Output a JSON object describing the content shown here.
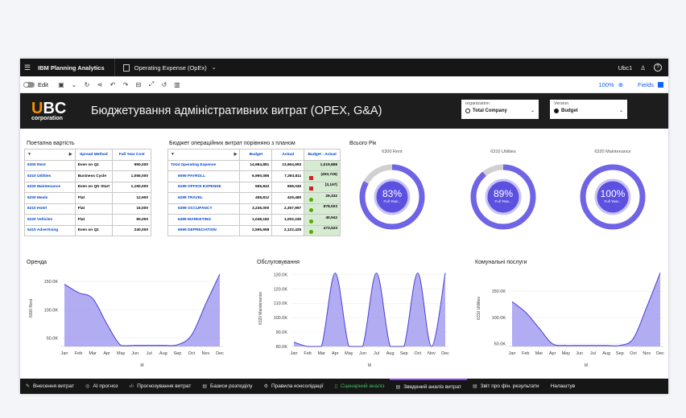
{
  "topbar": {
    "brand": "IBM Planning Analytics",
    "workbook": "Operating Expense (OpEx)",
    "user": "Ubc1",
    "help": "?"
  },
  "toolbar": {
    "edit": "Edit",
    "zoom": "100%",
    "fields": "Fields"
  },
  "banner": {
    "logo_big": "UBC",
    "logo_small": "corporation",
    "title": "Бюджетування адміністративних витрат (OPEX, G&A)",
    "org_label": "organization",
    "org_value": "Total Company",
    "version_label": "Version",
    "version_value": "Budget"
  },
  "table1": {
    "title": "Поетапна вартість",
    "headers": [
      "Spread Method",
      "Full Year Cost"
    ],
    "rows": [
      [
        "6300 Rent",
        "Even on Q1",
        "990,000"
      ],
      [
        "6310 Utilities",
        "Business Cycle",
        "1,056,000"
      ],
      [
        "6320 Maintenance",
        "Even on Qtr Start",
        "1,190,000"
      ],
      [
        "6200 Meals",
        "Flat",
        "12,900"
      ],
      [
        "6210 Hotel",
        "Flat",
        "16,000"
      ],
      [
        "6220 Vehicles",
        "Flat",
        "90,000"
      ],
      [
        "6410 Advertising",
        "Even on Q1",
        "240,000"
      ]
    ]
  },
  "table2": {
    "title": "Бюджет операційних витрат порівняно з планом",
    "headers": [
      "Budget",
      "Actual",
      "Budget - Actual"
    ],
    "rows": [
      [
        "Total Operating Expense",
        "14,984,881",
        "13,964,993",
        "1,019,888",
        "none"
      ],
      [
        "6099 PAYROLL",
        "6,990,085",
        "7,393,811",
        "(403,726)",
        "red"
      ],
      [
        "6199 OFFICE EXPENSE",
        "655,843",
        "659,040",
        "(3,197)",
        "red"
      ],
      [
        "6299 TRAVEL",
        "458,812",
        "429,480",
        "29,332",
        "green"
      ],
      [
        "6399 OCCUPANCY",
        "3,236,000",
        "2,357,997",
        "878,003",
        "green"
      ],
      [
        "6499 MARKETING",
        "1,048,182",
        "1,002,240",
        "45,942",
        "green"
      ],
      [
        "6599 DEPRECIATION",
        "2,595,958",
        "2,122,425",
        "473,533",
        "green"
      ]
    ]
  },
  "donuts": {
    "title": "Всього Рік",
    "items": [
      {
        "label": "6300 Rent",
        "pct": "83%",
        "value": 0.83,
        "sub": "Full Year..."
      },
      {
        "label": "6310 Utilities",
        "pct": "89%",
        "value": 0.89,
        "sub": "Full Year..."
      },
      {
        "label": "6320 Maintenance",
        "pct": "100%",
        "value": 1.0,
        "sub": "Full Year..."
      }
    ]
  },
  "chart_data": [
    {
      "type": "area",
      "title": "Оренда",
      "ylabel": "6300 Rent",
      "xlabel": "M",
      "categories": [
        "Jan",
        "Feb",
        "Mar",
        "Apr",
        "May",
        "Jun",
        "Jul",
        "Aug",
        "Sep",
        "Oct",
        "Nov",
        "Dec"
      ],
      "yticks": [
        "50.0K",
        "100.0K",
        "150.0K"
      ],
      "ylim": [
        35000,
        170000
      ],
      "values": [
        145000,
        130000,
        120000,
        75000,
        37000,
        37000,
        37000,
        37000,
        38000,
        55000,
        110000,
        163000
      ]
    },
    {
      "type": "area",
      "title": "Обслуговування",
      "ylabel": "6320 Maintenance",
      "xlabel": "M",
      "categories": [
        "Jan",
        "Feb",
        "Mar",
        "Apr",
        "May",
        "Jun",
        "Jul",
        "Aug",
        "Sep",
        "Oct",
        "Nov",
        "Dec"
      ],
      "yticks": [
        "80.0K",
        "90.0K",
        "100.0K",
        "110.0K",
        "120.0K",
        "130.0K"
      ],
      "ylim": [
        80000,
        133000
      ],
      "values": [
        83000,
        80000,
        80000,
        131000,
        80000,
        80000,
        131000,
        80000,
        80000,
        131000,
        80000,
        131000
      ]
    },
    {
      "type": "area",
      "title": "Комунальні послуги",
      "ylabel": "6310 Utilities",
      "xlabel": "M",
      "categories": [
        "Jan",
        "Feb",
        "Mar",
        "Apr",
        "May",
        "Jun",
        "Jul",
        "Aug",
        "Sep",
        "Oct",
        "Nov",
        "Dec"
      ],
      "yticks": [
        "50.0K",
        "100.0K",
        "150.0K"
      ],
      "ylim": [
        45000,
        190000
      ],
      "values": [
        130000,
        110000,
        80000,
        50000,
        47000,
        47000,
        47000,
        47000,
        47000,
        60000,
        120000,
        185000
      ]
    }
  ],
  "tabs": [
    {
      "icon": "pencil-icon",
      "glyph": "✎",
      "label": "Внесення витрат"
    },
    {
      "icon": "ai-icon",
      "glyph": "◎",
      "label": "AI прогноз"
    },
    {
      "icon": "code-icon",
      "glyph": "‹/›",
      "label": "Прогнозування витрат"
    },
    {
      "icon": "document-icon",
      "glyph": "▤",
      "label": "Базиси розподілу"
    },
    {
      "icon": "rules-icon",
      "glyph": "⚙",
      "label": "Правила консолідації"
    },
    {
      "icon": "scenario-icon",
      "glyph": "▯",
      "label": "Сценарний аналіз"
    },
    {
      "icon": "summary-icon",
      "glyph": "▤",
      "label": "Зведений аналіз витрат"
    },
    {
      "icon": "report-icon",
      "glyph": "▤",
      "label": "Звіт про фін. результати"
    },
    {
      "icon": "settings-icon",
      "glyph": "",
      "label": "Налаштув"
    }
  ],
  "colors": {
    "accent": "#6f63e6",
    "area_fill": "#a59df0",
    "ring_track": "#d0d0d0",
    "ring_center": "#5b50e0"
  }
}
